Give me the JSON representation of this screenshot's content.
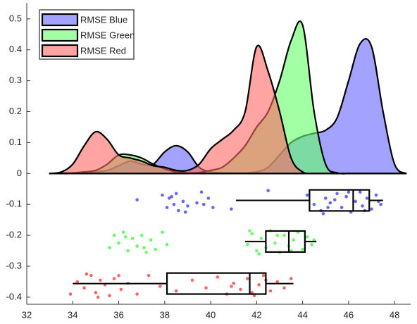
{
  "chart_data": {
    "type": "raincloud",
    "xlim": [
      32,
      48.7
    ],
    "ylim": [
      -0.423,
      0.552
    ],
    "xticks": [
      32,
      34,
      36,
      38,
      40,
      42,
      44,
      46,
      48
    ],
    "yticks": [
      -0.4,
      -0.3,
      -0.2,
      -0.1,
      0,
      0.1,
      0.2,
      0.3,
      0.4,
      0.5
    ],
    "legend": "upper left",
    "density_x": [
      33,
      33.5,
      34,
      34.5,
      35,
      35.5,
      36,
      36.5,
      37,
      37.5,
      38,
      38.5,
      39,
      39.5,
      40,
      40.5,
      41,
      41.5,
      42,
      42.5,
      43,
      43.5,
      44,
      44.5,
      45,
      45.5,
      46,
      46.5,
      47,
      47.5,
      48,
      48.5
    ],
    "series": [
      {
        "name": "RMSE Blue",
        "color": "#6666ff",
        "position": -0.087,
        "density": [
          0,
          0.001,
          0.002,
          0.003,
          0.005,
          0.01,
          0.025,
          0.04,
          0.03,
          0.03,
          0.07,
          0.09,
          0.07,
          0.02,
          0.005,
          0.002,
          0.002,
          0.002,
          0.005,
          0.02,
          0.06,
          0.1,
          0.12,
          0.13,
          0.14,
          0.18,
          0.3,
          0.42,
          0.41,
          0.2,
          0.03,
          0
        ],
        "box": {
          "whisker_low": 41.1,
          "q1": 44.3,
          "median": 46.2,
          "q3": 46.9,
          "whisker_high": 47.5
        },
        "points_x": [
          36.8,
          37.9,
          38.1,
          38.2,
          38.4,
          38.5,
          38.6,
          38.8,
          39.0,
          38.3,
          38.9,
          39.4,
          39.6,
          39.9,
          40.1,
          39.7,
          40.9,
          42.5,
          44.2,
          44.5,
          44.8,
          45.0,
          45.2,
          45.5,
          45.7,
          45.9,
          46.1,
          46.3,
          46.5,
          46.6,
          46.8,
          47.0,
          47.2,
          47.4,
          44.9,
          45.4,
          46.0,
          46.7,
          47.3,
          45.1
        ],
        "points_y": [
          -0.085,
          -0.07,
          -0.11,
          -0.08,
          -0.1,
          -0.065,
          -0.12,
          -0.09,
          -0.105,
          -0.075,
          -0.125,
          -0.095,
          -0.06,
          -0.08,
          -0.11,
          -0.1,
          -0.115,
          -0.055,
          -0.07,
          -0.1,
          -0.12,
          -0.08,
          -0.095,
          -0.065,
          -0.11,
          -0.075,
          -0.125,
          -0.09,
          -0.06,
          -0.105,
          -0.08,
          -0.115,
          -0.07,
          -0.1,
          -0.13,
          -0.085,
          -0.06,
          -0.12,
          -0.09,
          -0.11
        ]
      },
      {
        "name": "RMSE Green",
        "color": "#66ff66",
        "position": -0.22,
        "density": [
          0,
          0.001,
          0.002,
          0.005,
          0.01,
          0.03,
          0.06,
          0.06,
          0.05,
          0.03,
          0.015,
          0.005,
          0.002,
          0.003,
          0.01,
          0.02,
          0.05,
          0.09,
          0.15,
          0.2,
          0.3,
          0.43,
          0.48,
          0.2,
          0.03,
          0.002,
          0,
          0,
          0,
          0,
          0,
          0
        ],
        "box": {
          "whisker_low": 41.5,
          "q1": 42.4,
          "median": 43.4,
          "q3": 44.1,
          "whisker_high": 44.6
        },
        "points_x": [
          35.6,
          35.8,
          36.0,
          36.2,
          36.4,
          36.6,
          36.8,
          37.0,
          37.2,
          37.4,
          37.6,
          37.9,
          38.1,
          36.3,
          37.1,
          41.6,
          41.8,
          42.0,
          42.2,
          42.4,
          42.6,
          42.8,
          43.0,
          43.2,
          43.4,
          43.6,
          43.8,
          44.0,
          44.2,
          44.4,
          42.1,
          42.9,
          43.5,
          44.5,
          41.7
        ],
        "points_y": [
          -0.24,
          -0.2,
          -0.225,
          -0.19,
          -0.25,
          -0.21,
          -0.235,
          -0.2,
          -0.255,
          -0.215,
          -0.245,
          -0.19,
          -0.23,
          -0.205,
          -0.24,
          -0.23,
          -0.195,
          -0.25,
          -0.21,
          -0.24,
          -0.185,
          -0.225,
          -0.255,
          -0.2,
          -0.235,
          -0.215,
          -0.19,
          -0.245,
          -0.205,
          -0.23,
          -0.26,
          -0.2,
          -0.25,
          -0.215,
          -0.185
        ]
      },
      {
        "name": "RMSE Red",
        "color": "#ff6666",
        "position": -0.356,
        "density": [
          0,
          0.005,
          0.03,
          0.09,
          0.135,
          0.11,
          0.06,
          0.05,
          0.04,
          0.025,
          0.02,
          0.01,
          0.01,
          0.03,
          0.08,
          0.11,
          0.14,
          0.2,
          0.41,
          0.33,
          0.2,
          0.05,
          0.005,
          0,
          0,
          0,
          0,
          0,
          0,
          0,
          0,
          0
        ],
        "box": {
          "whisker_low": 34.0,
          "q1": 38.1,
          "median": 41.7,
          "q3": 42.4,
          "whisker_high": 43.6
        },
        "points_x": [
          33.9,
          34.2,
          34.5,
          34.8,
          35.0,
          35.2,
          35.4,
          35.6,
          35.8,
          36.1,
          36.4,
          36.8,
          37.3,
          37.8,
          38.5,
          39.2,
          39.8,
          40.3,
          40.7,
          41.0,
          41.3,
          41.6,
          41.9,
          42.1,
          42.3,
          42.6,
          42.9,
          43.2,
          43.5,
          35.1,
          34.6,
          40.9,
          41.8,
          42.4,
          36.0
        ],
        "points_y": [
          -0.39,
          -0.35,
          -0.37,
          -0.33,
          -0.385,
          -0.345,
          -0.36,
          -0.395,
          -0.34,
          -0.375,
          -0.355,
          -0.39,
          -0.33,
          -0.365,
          -0.38,
          -0.345,
          -0.37,
          -0.335,
          -0.39,
          -0.355,
          -0.375,
          -0.34,
          -0.395,
          -0.36,
          -0.33,
          -0.38,
          -0.35,
          -0.37,
          -0.34,
          -0.4,
          -0.325,
          -0.365,
          -0.385,
          -0.345,
          -0.33
        ]
      }
    ]
  }
}
